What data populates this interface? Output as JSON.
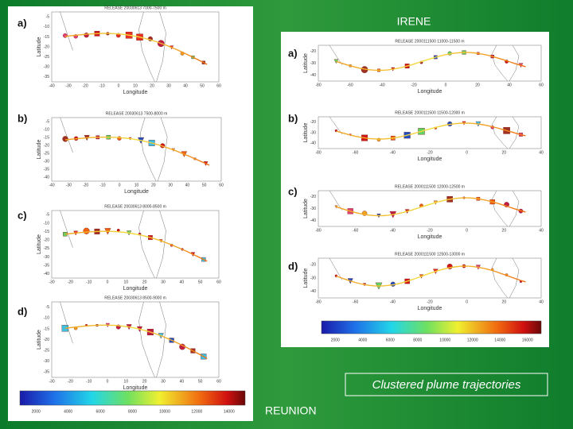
{
  "slide": {
    "title_irene": "IRENE",
    "title_reunion": "REUNION",
    "caption": "Clustered plume trajectories"
  },
  "left_panels": [
    {
      "label": "a)",
      "title": "RELEASE 20030613 7000-7500 m",
      "xlabel": "Longitude",
      "ylabel": "Latitude",
      "xticks": [
        "-40",
        "-30",
        "-20",
        "-10",
        "0",
        "10",
        "20",
        "30",
        "40",
        "50",
        "60"
      ],
      "yticks": [
        "-5",
        "-10",
        "-15",
        "-20",
        "-25",
        "-30",
        "-35"
      ]
    },
    {
      "label": "b)",
      "title": "RELEASE 20030613 7500-8000 m",
      "xlabel": "Longitude",
      "ylabel": "Latitude",
      "xticks": [
        "-40",
        "-30",
        "-20",
        "-10",
        "0",
        "10",
        "20",
        "30",
        "40",
        "50",
        "60"
      ],
      "yticks": [
        "-5",
        "-10",
        "-15",
        "-20",
        "-25",
        "-30",
        "-35",
        "-40"
      ]
    },
    {
      "label": "c)",
      "title": "RELEASE 20030613 8000-8500 m",
      "xlabel": "Longitude",
      "ylabel": "Latitude",
      "xticks": [
        "-30",
        "-20",
        "-10",
        "0",
        "10",
        "20",
        "30",
        "40",
        "50",
        "60"
      ],
      "yticks": [
        "-5",
        "-10",
        "-15",
        "-20",
        "-25",
        "-30",
        "-35",
        "-40"
      ]
    },
    {
      "label": "d)",
      "title": "RELEASE 20030613 8500-9000 m",
      "xlabel": "Longitude",
      "ylabel": "Latitude",
      "xticks": [
        "-30",
        "-20",
        "-10",
        "0",
        "10",
        "20",
        "30",
        "40",
        "50",
        "60"
      ],
      "yticks": [
        "-5",
        "-10",
        "-15",
        "-20",
        "-25",
        "-30",
        "-35"
      ]
    }
  ],
  "left_colorbar": [
    "2000",
    "4000",
    "6000",
    "8000",
    "10000",
    "12000",
    "14000"
  ],
  "right_panels": [
    {
      "label": "a)",
      "title": "RELEASE 2000111500 11000-11500 m",
      "xlabel": "Longitude",
      "ylabel": "Latitude",
      "xticks": [
        "-80",
        "-60",
        "-40",
        "-20",
        "0",
        "20",
        "40",
        "60"
      ],
      "yticks": [
        "-20",
        "-30",
        "-40"
      ]
    },
    {
      "label": "b)",
      "title": "RELEASE 2000111500 11500-12000 m",
      "xlabel": "Longitude",
      "ylabel": "Latitude",
      "xticks": [
        "-80",
        "-60",
        "-40",
        "-20",
        "0",
        "20",
        "40"
      ],
      "yticks": [
        "-20",
        "-30",
        "-40"
      ]
    },
    {
      "label": "c)",
      "title": "RELEASE 2000111500 12000-12500 m",
      "xlabel": "Longitude",
      "ylabel": "Latitude",
      "xticks": [
        "-80",
        "-60",
        "-40",
        "-20",
        "0",
        "20",
        "40"
      ],
      "yticks": [
        "-20",
        "-30",
        "-40"
      ]
    },
    {
      "label": "d)",
      "title": "RELEASE 2000111500 12500-13000 m",
      "xlabel": "Longitude",
      "ylabel": "Latitude",
      "xticks": [
        "-80",
        "-60",
        "-40",
        "-20",
        "0",
        "20",
        "40"
      ],
      "yticks": [
        "-20",
        "-30",
        "-40"
      ]
    }
  ],
  "right_colorbar": [
    "2000",
    "4000",
    "6000",
    "8000",
    "10000",
    "12000",
    "14000",
    "16000"
  ]
}
